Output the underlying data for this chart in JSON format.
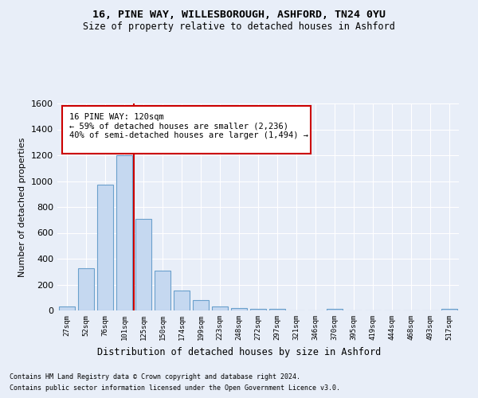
{
  "title1": "16, PINE WAY, WILLESBOROUGH, ASHFORD, TN24 0YU",
  "title2": "Size of property relative to detached houses in Ashford",
  "xlabel": "Distribution of detached houses by size in Ashford",
  "ylabel": "Number of detached properties",
  "categories": [
    "27sqm",
    "52sqm",
    "76sqm",
    "101sqm",
    "125sqm",
    "150sqm",
    "174sqm",
    "199sqm",
    "223sqm",
    "248sqm",
    "272sqm",
    "297sqm",
    "321sqm",
    "346sqm",
    "370sqm",
    "395sqm",
    "419sqm",
    "444sqm",
    "468sqm",
    "493sqm",
    "517sqm"
  ],
  "values": [
    30,
    325,
    970,
    1200,
    705,
    305,
    155,
    80,
    30,
    20,
    12,
    12,
    0,
    0,
    12,
    0,
    0,
    0,
    0,
    0,
    12
  ],
  "bar_color": "#c5d8f0",
  "bar_edge_color": "#6aa0cc",
  "vline_color": "#cc0000",
  "annotation_text": "16 PINE WAY: 120sqm\n← 59% of detached houses are smaller (2,236)\n40% of semi-detached houses are larger (1,494) →",
  "annotation_box_color": "white",
  "annotation_box_edge_color": "#cc0000",
  "ylim": [
    0,
    1600
  ],
  "yticks": [
    0,
    200,
    400,
    600,
    800,
    1000,
    1200,
    1400,
    1600
  ],
  "background_color": "#e8eef8",
  "grid_color": "#ffffff",
  "footer1": "Contains HM Land Registry data © Crown copyright and database right 2024.",
  "footer2": "Contains public sector information licensed under the Open Government Licence v3.0."
}
